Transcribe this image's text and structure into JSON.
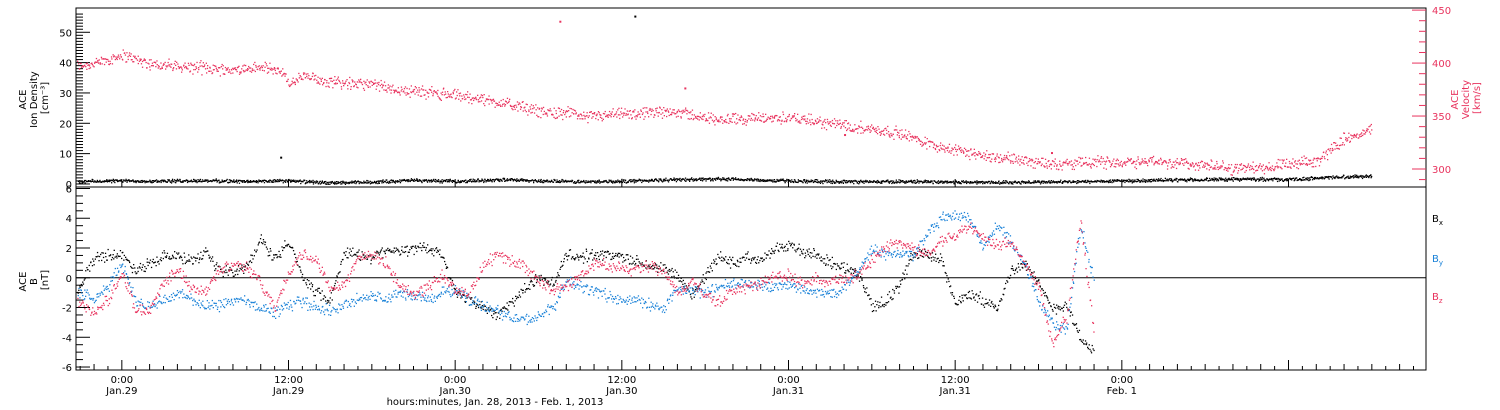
{
  "colors": {
    "density": "#000000",
    "velocity": "#e8335e",
    "bx": "#000000",
    "by": "#1a82d8",
    "bz": "#e8335e",
    "frame": "#000000"
  },
  "chart_data": [
    {
      "type": "scatter",
      "title": "",
      "xlabel": "",
      "x_unit": "hours since 2013-01-28 00:00 UT",
      "xlim": [
        20.7,
        117.9
      ],
      "left_axis": {
        "label_lines": [
          "ACE",
          "Ion Density",
          "[cm⁻³]"
        ],
        "ylim": [
          -1,
          58
        ],
        "ticks": [
          0,
          10,
          20,
          30,
          40,
          50
        ]
      },
      "right_axis": {
        "label_lines": [
          "ACE",
          "Velocity",
          "[km/s]"
        ],
        "ylim": [
          283,
          452
        ],
        "ticks": [
          300,
          350,
          400,
          450
        ]
      },
      "series": [
        {
          "name": "",
          "axis": "left",
          "x": [
            20.7,
            24,
            27,
            30,
            33,
            36,
            39,
            42,
            45,
            48,
            51,
            54,
            57,
            60,
            63,
            66,
            69,
            72,
            75,
            78,
            81,
            84,
            87,
            90,
            93,
            96,
            99,
            102,
            105,
            108,
            111,
            114
          ],
          "y": [
            1.0,
            1.2,
            1.1,
            1.3,
            1.0,
            1.2,
            0.5,
            0.8,
            1.4,
            1.0,
            1.6,
            1.2,
            0.9,
            1.1,
            1.5,
            1.8,
            1.6,
            1.2,
            1.0,
            0.9,
            1.0,
            0.8,
            0.7,
            0.8,
            0.9,
            1.2,
            1.4,
            1.6,
            1.8,
            1.6,
            2.4,
            2.8
          ]
        },
        {
          "name": "",
          "axis": "right",
          "x": [
            20.7,
            22,
            24,
            26,
            28,
            30,
            32,
            34,
            35.5,
            36,
            37,
            38,
            40,
            42,
            44,
            46,
            48,
            50,
            52,
            54,
            56,
            58,
            60,
            62,
            64,
            66,
            68,
            70,
            72,
            74,
            76,
            78,
            80,
            82,
            84,
            86,
            88,
            90,
            92,
            94,
            96,
            98,
            100,
            102,
            104,
            106,
            108,
            110,
            111,
            112,
            113,
            114
          ],
          "y": [
            398,
            400,
            408,
            400,
            397,
            396,
            394,
            396,
            393,
            380,
            388,
            385,
            382,
            380,
            375,
            373,
            370,
            366,
            361,
            355,
            353,
            350,
            352,
            353,
            355,
            348,
            348,
            348,
            349,
            345,
            342,
            338,
            334,
            325,
            318,
            313,
            310,
            307,
            305,
            307,
            307,
            308,
            306,
            304,
            301,
            302,
            304,
            308,
            318,
            330,
            333,
            338
          ]
        }
      ],
      "outliers": [
        {
          "series": 0,
          "x": 60.9,
          "y": 55.5
        },
        {
          "series": 0,
          "x": 35.4,
          "y": 9.0
        },
        {
          "series": 1,
          "x": 55.5,
          "y": 440
        },
        {
          "series": 1,
          "x": 64.5,
          "y": 377
        },
        {
          "series": 1,
          "x": 76.0,
          "y": 333
        },
        {
          "series": 1,
          "x": 90.9,
          "y": 316
        }
      ]
    },
    {
      "type": "scatter",
      "title": "",
      "xlabel": "hours:minutes, Jan. 28, 2013 - Feb.  1, 2013",
      "x_unit": "hours since 2013-01-28 00:00 UT",
      "xlim": [
        20.7,
        117.9
      ],
      "ylabel_lines": [
        "ACE",
        "B",
        "[nT]"
      ],
      "ylim": [
        -6.2,
        6.1
      ],
      "ticks": [
        -6,
        -4,
        -2,
        0,
        2,
        4,
        6
      ],
      "zero_line": true,
      "x_tick_labels": [
        {
          "x": 24,
          "time": "0:00",
          "date": "Jan.29"
        },
        {
          "x": 36,
          "time": "12:00",
          "date": "Jan.29"
        },
        {
          "x": 48,
          "time": "0:00",
          "date": "Jan.30"
        },
        {
          "x": 60,
          "time": "12:00",
          "date": "Jan.30"
        },
        {
          "x": 72,
          "time": "0:00",
          "date": "Jan.31"
        },
        {
          "x": 84,
          "time": "12:00",
          "date": "Jan.31"
        },
        {
          "x": 96,
          "time": "0:00",
          "date": "Feb. 1"
        }
      ],
      "legend": [
        {
          "label": "B",
          "sub": "x",
          "color": "#000000"
        },
        {
          "label": "B",
          "sub": "y",
          "color": "#1a82d8"
        },
        {
          "label": "B",
          "sub": "z",
          "color": "#e8335e"
        }
      ],
      "series": [
        {
          "name": "B_x",
          "x": [
            20.7,
            22,
            23,
            24,
            25,
            26,
            27,
            28,
            29,
            30,
            31,
            32,
            33,
            34,
            35,
            36,
            37,
            38,
            39,
            40,
            41,
            42,
            43,
            44,
            45,
            46,
            47,
            48,
            49,
            50,
            51,
            52,
            53,
            54,
            55,
            56,
            57,
            58,
            59,
            60,
            61,
            62,
            63,
            64,
            65,
            66,
            67,
            68,
            69,
            70,
            71,
            72,
            73,
            74,
            75,
            76,
            77,
            78,
            79,
            80,
            81,
            82,
            83,
            84,
            85,
            86,
            87,
            88,
            89,
            90,
            91,
            92,
            93,
            94
          ],
          "y": [
            -1.0,
            1.4,
            1.6,
            1.5,
            0.6,
            1.0,
            1.6,
            1.4,
            1.2,
            1.6,
            0.5,
            0.4,
            0.8,
            2.6,
            1.3,
            2.4,
            0.2,
            -1.0,
            -1.4,
            1.8,
            1.6,
            1.4,
            2.0,
            1.8,
            2.0,
            2.0,
            1.6,
            -1.0,
            -1.4,
            -2.0,
            -2.4,
            -1.6,
            -0.8,
            0.1,
            -0.4,
            1.6,
            1.4,
            1.6,
            1.6,
            1.4,
            1.2,
            0.8,
            0.6,
            0.2,
            -1.2,
            0.2,
            1.6,
            1.0,
            1.4,
            1.4,
            2.0,
            2.2,
            1.8,
            1.5,
            1.0,
            0.8,
            0.2,
            -1.8,
            -1.5,
            -0.5,
            1.8,
            1.6,
            1.2,
            -1.8,
            -1.0,
            -1.5,
            -2.0,
            0.5,
            1.0,
            -0.5,
            -2.0,
            -1.8,
            -4.0,
            -5.0
          ]
        },
        {
          "name": "B_y",
          "x": [
            20.7,
            22,
            23,
            24,
            25,
            26,
            27,
            28,
            29,
            30,
            31,
            32,
            33,
            34,
            35,
            36,
            37,
            38,
            39,
            40,
            41,
            42,
            43,
            44,
            45,
            46,
            47,
            48,
            49,
            50,
            51,
            52,
            53,
            54,
            55,
            56,
            57,
            58,
            59,
            60,
            61,
            62,
            63,
            64,
            65,
            66,
            67,
            68,
            69,
            70,
            71,
            72,
            73,
            74,
            75,
            76,
            77,
            78,
            79,
            80,
            81,
            82,
            83,
            84,
            85,
            86,
            87,
            88,
            89,
            90,
            91,
            92,
            93,
            94
          ],
          "y": [
            -0.8,
            -1.5,
            -0.5,
            1.0,
            -1.5,
            -2.0,
            -1.5,
            -1.0,
            -1.4,
            -2.0,
            -1.8,
            -1.5,
            -1.6,
            -2.0,
            -2.3,
            -1.8,
            -1.5,
            -2.0,
            -2.2,
            -1.8,
            -1.4,
            -1.2,
            -1.4,
            -1.0,
            -1.2,
            -1.4,
            -1.0,
            -0.8,
            -1.4,
            -1.8,
            -2.2,
            -2.6,
            -2.8,
            -2.6,
            -2.0,
            -0.2,
            -0.6,
            -0.8,
            -1.2,
            -1.6,
            -1.4,
            -1.8,
            -2.0,
            -0.8,
            -0.8,
            -1.0,
            -0.6,
            -0.4,
            -0.4,
            -0.4,
            -0.6,
            -0.4,
            -0.8,
            -1.0,
            -1.0,
            -0.6,
            0.6,
            2.0,
            1.6,
            1.6,
            1.6,
            3.0,
            4.0,
            4.2,
            4.0,
            2.0,
            3.6,
            2.4,
            1.0,
            -1.6,
            -3.0,
            -3.6,
            3.6,
            -0.4
          ]
        },
        {
          "name": "B_z",
          "x": [
            20.7,
            22,
            23,
            24,
            25,
            26,
            27,
            28,
            29,
            30,
            31,
            32,
            33,
            34,
            35,
            36,
            37,
            38,
            39,
            40,
            41,
            42,
            43,
            44,
            45,
            46,
            47,
            48,
            49,
            50,
            51,
            52,
            53,
            54,
            55,
            56,
            57,
            58,
            59,
            60,
            61,
            62,
            63,
            64,
            65,
            66,
            67,
            68,
            69,
            70,
            71,
            72,
            73,
            74,
            75,
            76,
            77,
            78,
            79,
            80,
            81,
            82,
            83,
            84,
            85,
            86,
            87,
            88,
            89,
            90,
            91,
            92,
            93,
            94
          ],
          "y": [
            -1.5,
            -2.4,
            -1.4,
            0.4,
            -2.2,
            -2.0,
            -0.2,
            0.6,
            -0.6,
            -1.0,
            0.6,
            1.0,
            0.8,
            -0.4,
            -2.0,
            0.4,
            1.6,
            1.2,
            -0.6,
            -0.4,
            1.4,
            1.6,
            1.0,
            -0.6,
            -1.0,
            -0.6,
            0.2,
            -0.8,
            -1.0,
            0.8,
            1.6,
            1.2,
            0.8,
            -0.2,
            -0.8,
            -0.6,
            0.2,
            1.0,
            0.8,
            0.6,
            0.6,
            0.8,
            0.4,
            -1.0,
            -0.2,
            -1.2,
            -1.6,
            -0.8,
            -0.6,
            -0.4,
            0.2,
            0.2,
            -0.4,
            0.0,
            -0.2,
            0.0,
            0.2,
            1.2,
            2.2,
            2.4,
            2.0,
            1.6,
            2.6,
            3.0,
            3.4,
            2.6,
            2.2,
            2.4,
            1.0,
            -0.6,
            -4.4,
            -2.6,
            3.8,
            -3.8
          ]
        }
      ]
    }
  ]
}
